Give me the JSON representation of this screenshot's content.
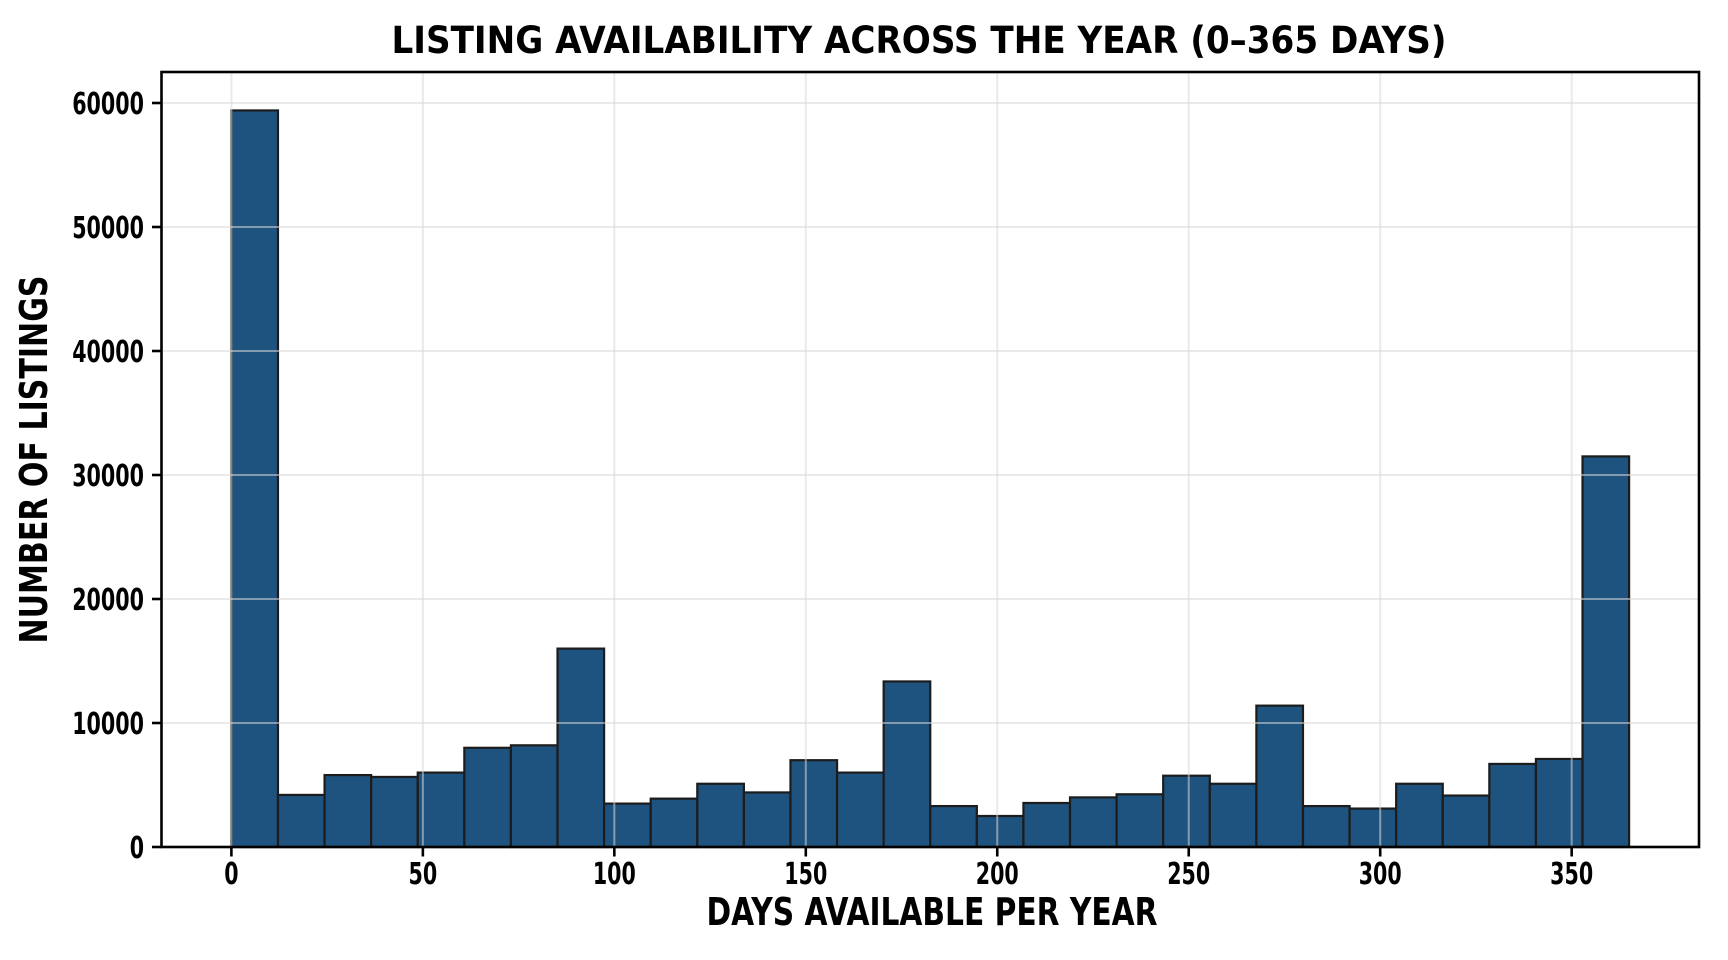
{
  "chart_data": {
    "type": "bar",
    "subtype": "histogram",
    "title": "LISTING AVAILABILITY ACROSS THE YEAR (0–365 DAYS)",
    "xlabel": "DAYS AVAILABLE PER YEAR",
    "ylabel": "NUMBER OF LISTINGS",
    "bins": {
      "start_day": 0,
      "end_day": 365,
      "count": 30,
      "width_days": 12.1667
    },
    "values": [
      59400,
      4200,
      5800,
      5650,
      6000,
      8000,
      8200,
      16000,
      3500,
      3900,
      5100,
      4400,
      7000,
      6000,
      13350,
      3300,
      2500,
      3550,
      4000,
      4250,
      5750,
      5100,
      11400,
      3300,
      3100,
      5100,
      4150,
      6700,
      7100,
      31500
    ],
    "x_ticks": [
      0,
      50,
      100,
      150,
      200,
      250,
      300,
      350
    ],
    "y_ticks": [
      0,
      10000,
      20000,
      30000,
      40000,
      50000,
      60000
    ],
    "x_tick_labels": [
      "0",
      "50",
      "100",
      "150",
      "200",
      "250",
      "300",
      "350"
    ],
    "y_tick_labels": [
      "0",
      "10000",
      "20000",
      "30000",
      "40000",
      "50000",
      "60000"
    ],
    "xlim": [
      -18.25,
      383.25
    ],
    "ylim": [
      0,
      62500
    ],
    "grid": "both axes, light gray, drawn over bars",
    "legend": "none",
    "colors": {
      "bar_fill": "#1f537f",
      "bar_edge": "#1c1c1c",
      "grid": "#d9d9d9",
      "axis": "#000000",
      "text": "#000000",
      "background": "#ffffff"
    }
  }
}
